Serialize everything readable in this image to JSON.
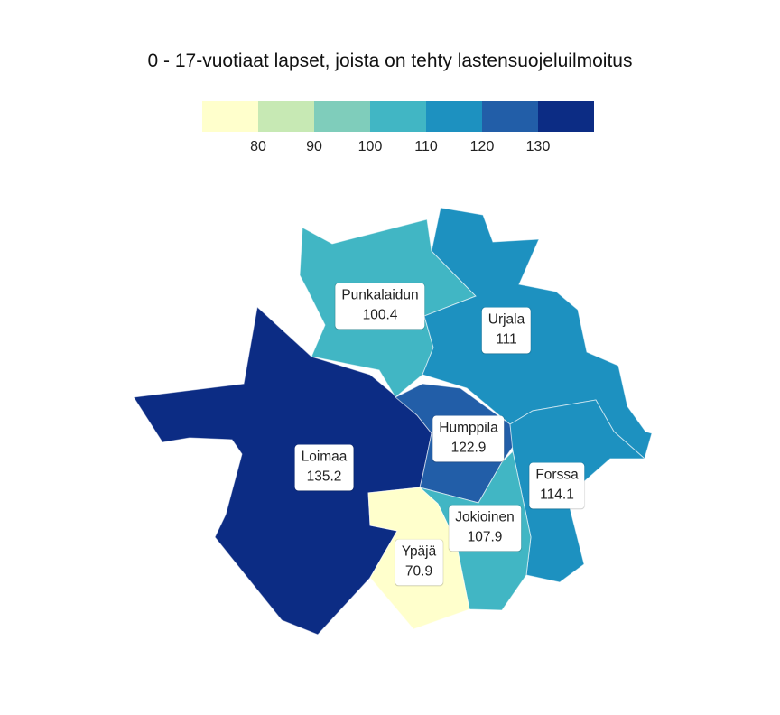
{
  "title": "0 - 17-vuotiaat lapset, joista on tehty lastensuojeluilmoitus",
  "legend": {
    "colors": [
      "#ffffcc",
      "#c7e9b4",
      "#7fcdbb",
      "#41b6c4",
      "#1d91c0",
      "#225ea8",
      "#0c2c84"
    ],
    "ticks": [
      "80",
      "90",
      "100",
      "110",
      "120",
      "130"
    ]
  },
  "regions": [
    {
      "name": "Punkalaidun",
      "value": "100.4",
      "color": "#41b6c4"
    },
    {
      "name": "Urjala",
      "value": "111",
      "color": "#1d91c0"
    },
    {
      "name": "Loimaa",
      "value": "135.2",
      "color": "#0c2c84"
    },
    {
      "name": "Humppila",
      "value": "122.9",
      "color": "#225ea8"
    },
    {
      "name": "Forssa",
      "value": "114.1",
      "color": "#1d91c0"
    },
    {
      "name": "Jokioinen",
      "value": "107.9",
      "color": "#41b6c4"
    },
    {
      "name": "Ypäjä",
      "value": "70.9",
      "color": "#ffffcc"
    }
  ]
}
